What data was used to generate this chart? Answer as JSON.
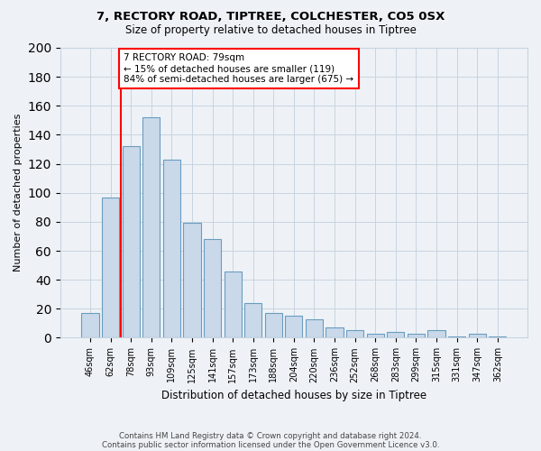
{
  "title1": "7, RECTORY ROAD, TIPTREE, COLCHESTER, CO5 0SX",
  "title2": "Size of property relative to detached houses in Tiptree",
  "xlabel": "Distribution of detached houses by size in Tiptree",
  "ylabel": "Number of detached properties",
  "categories": [
    "46sqm",
    "62sqm",
    "78sqm",
    "93sqm",
    "109sqm",
    "125sqm",
    "141sqm",
    "157sqm",
    "173sqm",
    "188sqm",
    "204sqm",
    "220sqm",
    "236sqm",
    "252sqm",
    "268sqm",
    "283sqm",
    "299sqm",
    "315sqm",
    "331sqm",
    "347sqm",
    "362sqm"
  ],
  "values": [
    17,
    97,
    132,
    152,
    123,
    79,
    68,
    46,
    24,
    17,
    15,
    13,
    7,
    5,
    3,
    4,
    3,
    5,
    1,
    3,
    1
  ],
  "bar_color": "#c9d9ea",
  "bar_edge_color": "#6a9cbf",
  "red_line_x": 1.5,
  "annotation_text": "7 RECTORY ROAD: 79sqm\n← 15% of detached houses are smaller (119)\n84% of semi-detached houses are larger (675) →",
  "annotation_box_color": "white",
  "annotation_box_edge": "red",
  "ylim": [
    0,
    200
  ],
  "yticks": [
    0,
    20,
    40,
    60,
    80,
    100,
    120,
    140,
    160,
    180,
    200
  ],
  "footer1": "Contains HM Land Registry data © Crown copyright and database right 2024.",
  "footer2": "Contains public sector information licensed under the Open Government Licence v3.0.",
  "bg_color": "#eef2f7",
  "plot_bg_color": "#eef2f7",
  "grid_color": "#c8d4e0"
}
